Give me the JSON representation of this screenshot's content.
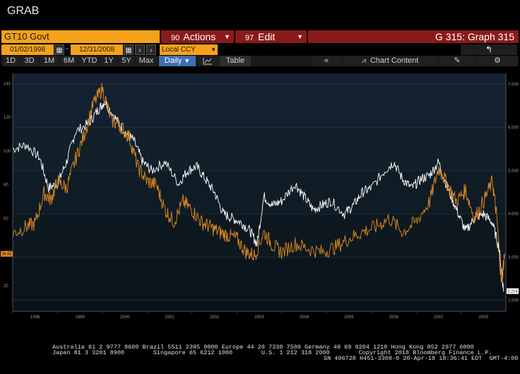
{
  "window": {
    "title": "GRAB"
  },
  "toolbar_top": {
    "ticker": "GT10 Govt",
    "actions": {
      "num": "90",
      "label": "Actions"
    },
    "edit": {
      "num": "97",
      "label": "Edit"
    },
    "graph_title": "G 315: Graph 315"
  },
  "date_range": {
    "start": "01/02/1998",
    "separator": "-",
    "end": "12/31/2008",
    "currency": "Local CCY"
  },
  "period_buttons": [
    "1D",
    "3D",
    "1M",
    "6M",
    "YTD",
    "1Y",
    "5Y",
    "Max"
  ],
  "frequency": {
    "label": "Daily",
    "caret": "▼"
  },
  "table_label": "Table",
  "chart_content_label": "Chart Content",
  "chart_data": {
    "type": "line",
    "x_ticks": [
      "1998",
      "1999",
      "2000",
      "2001",
      "2002",
      "2003",
      "2004",
      "2005",
      "2006",
      "2007",
      "2008"
    ],
    "left_axis": {
      "ticks": [
        "20",
        "40",
        "60",
        "80",
        "100",
        "120",
        "140"
      ],
      "range": [
        5,
        146
      ]
    },
    "right_axis": {
      "ticks": [
        "2.000",
        "3.000",
        "4.000",
        "5.000",
        "6.000",
        "7.000"
      ],
      "range": [
        1.75,
        7.25
      ]
    },
    "last_values": {
      "left": "39.00",
      "right": "2.214"
    },
    "series": [
      {
        "color": "#ffffff",
        "axis": "right",
        "x": [
          1998.0,
          1998.3,
          1998.6,
          1998.8,
          1999.0,
          1999.2,
          1999.4,
          1999.7,
          1999.9,
          2000.05,
          2000.3,
          2000.5,
          2000.7,
          2000.9,
          2001.1,
          2001.4,
          2001.7,
          2001.9,
          2002.1,
          2002.3,
          2002.5,
          2002.7,
          2002.9,
          2003.1,
          2003.3,
          2003.45,
          2003.6,
          2003.8,
          2004.0,
          2004.3,
          2004.5,
          2004.7,
          2004.9,
          2005.1,
          2005.4,
          2005.6,
          2005.8,
          2006.0,
          2006.3,
          2006.5,
          2006.7,
          2006.9,
          2007.1,
          2007.3,
          2007.5,
          2007.7,
          2007.9,
          2008.1,
          2008.3,
          2008.5,
          2008.7,
          2008.85,
          2008.95
        ],
        "y": [
          5.5,
          5.6,
          5.3,
          4.6,
          4.7,
          5.2,
          5.9,
          6.1,
          6.4,
          6.6,
          6.2,
          5.9,
          5.7,
          5.2,
          5.0,
          5.2,
          4.7,
          5.0,
          5.1,
          4.8,
          4.5,
          4.0,
          3.9,
          3.8,
          3.6,
          3.3,
          4.4,
          4.2,
          4.3,
          4.7,
          4.4,
          4.1,
          4.2,
          4.3,
          4.0,
          4.2,
          4.5,
          4.6,
          5.0,
          5.2,
          4.8,
          4.6,
          4.8,
          4.9,
          5.2,
          4.6,
          4.1,
          3.6,
          3.9,
          4.0,
          3.8,
          3.2,
          2.2
        ]
      },
      {
        "color": "#e08a1e",
        "axis": "left",
        "x": [
          1998.0,
          1998.3,
          1998.5,
          1998.7,
          1998.85,
          1999.0,
          1999.2,
          1999.4,
          1999.6,
          1999.8,
          2000.0,
          2000.2,
          2000.4,
          2000.6,
          2000.8,
          2001.0,
          2001.2,
          2001.4,
          2001.6,
          2001.8,
          2002.0,
          2002.2,
          2002.4,
          2002.6,
          2002.8,
          2003.0,
          2003.2,
          2003.4,
          2003.6,
          2003.8,
          2004.0,
          2004.3,
          2004.6,
          2004.9,
          2005.2,
          2005.5,
          2005.8,
          2006.1,
          2006.4,
          2006.7,
          2007.0,
          2007.3,
          2007.5,
          2007.7,
          2007.9,
          2008.1,
          2008.3,
          2008.5,
          2008.7,
          2008.8,
          2008.9,
          2008.97
        ],
        "y": [
          51,
          55,
          57,
          75,
          71,
          82,
          78,
          95,
          110,
          128,
          137,
          118,
          115,
          108,
          90,
          82,
          80,
          65,
          58,
          70,
          65,
          58,
          55,
          52,
          50,
          48,
          40,
          38,
          52,
          44,
          40,
          45,
          42,
          40,
          43,
          48,
          52,
          55,
          60,
          52,
          58,
          70,
          90,
          80,
          70,
          77,
          60,
          70,
          82,
          60,
          21,
          39
        ]
      }
    ]
  },
  "footer": {
    "line1": "Australia 61 2 9777 8600 Brazil 5511 2395 9000 Europe 44 20 7330 7500 Germany 49 69 9204 1210 Hong Kong 852 2977 6000",
    "line2": "Japan 81 3 3201 8900        Singapore 65 6212 1000        U.S. 1 212 318 2000        Copyright 2018 Bloomberg Finance L.P.",
    "line3": "SN 496728 H451-3308-0 20-Apr-18 18:36:41 EDT  GMT-4:00"
  },
  "colors": {
    "accent_orange": "#f6a11a",
    "button_red": "#8b1a1a",
    "selected_blue": "#3f6eb3"
  }
}
